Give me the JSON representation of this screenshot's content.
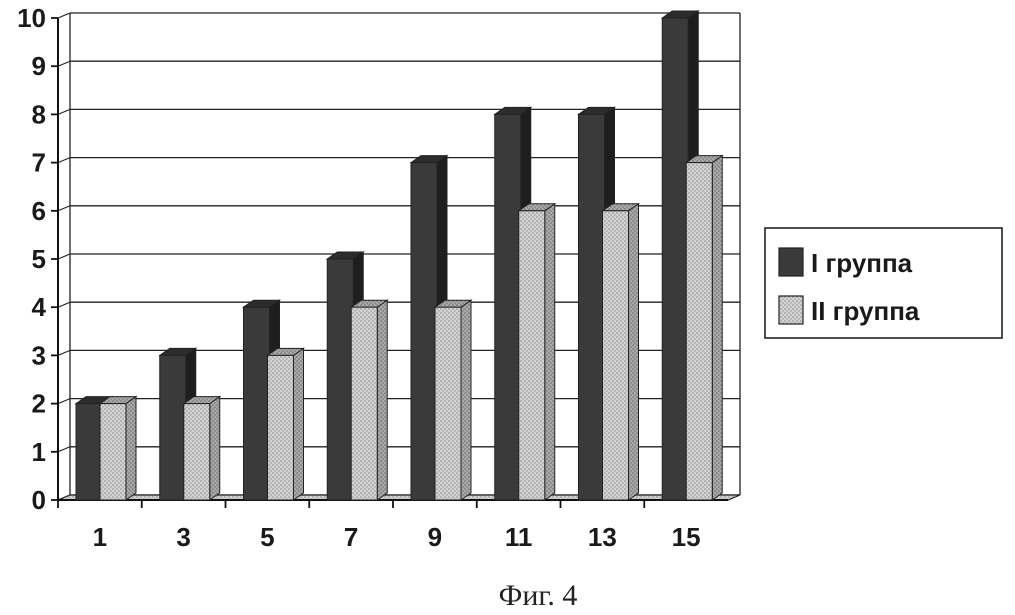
{
  "chart_data": {
    "type": "bar",
    "categories": [
      "1",
      "3",
      "5",
      "7",
      "9",
      "11",
      "13",
      "15"
    ],
    "series": [
      {
        "name": "I группа",
        "values": [
          2,
          3,
          4,
          5,
          7,
          8,
          8,
          10
        ],
        "color": "#3a3a3a"
      },
      {
        "name": "II группа",
        "values": [
          2,
          2,
          3,
          4,
          4,
          6,
          6,
          7
        ],
        "color": "#c8c8c8"
      }
    ],
    "ylim": [
      0,
      10
    ],
    "yticks": [
      0,
      1,
      2,
      3,
      4,
      5,
      6,
      7,
      8,
      9,
      10
    ],
    "grid": true,
    "legend_position": "right",
    "caption": "Фиг. 4"
  }
}
